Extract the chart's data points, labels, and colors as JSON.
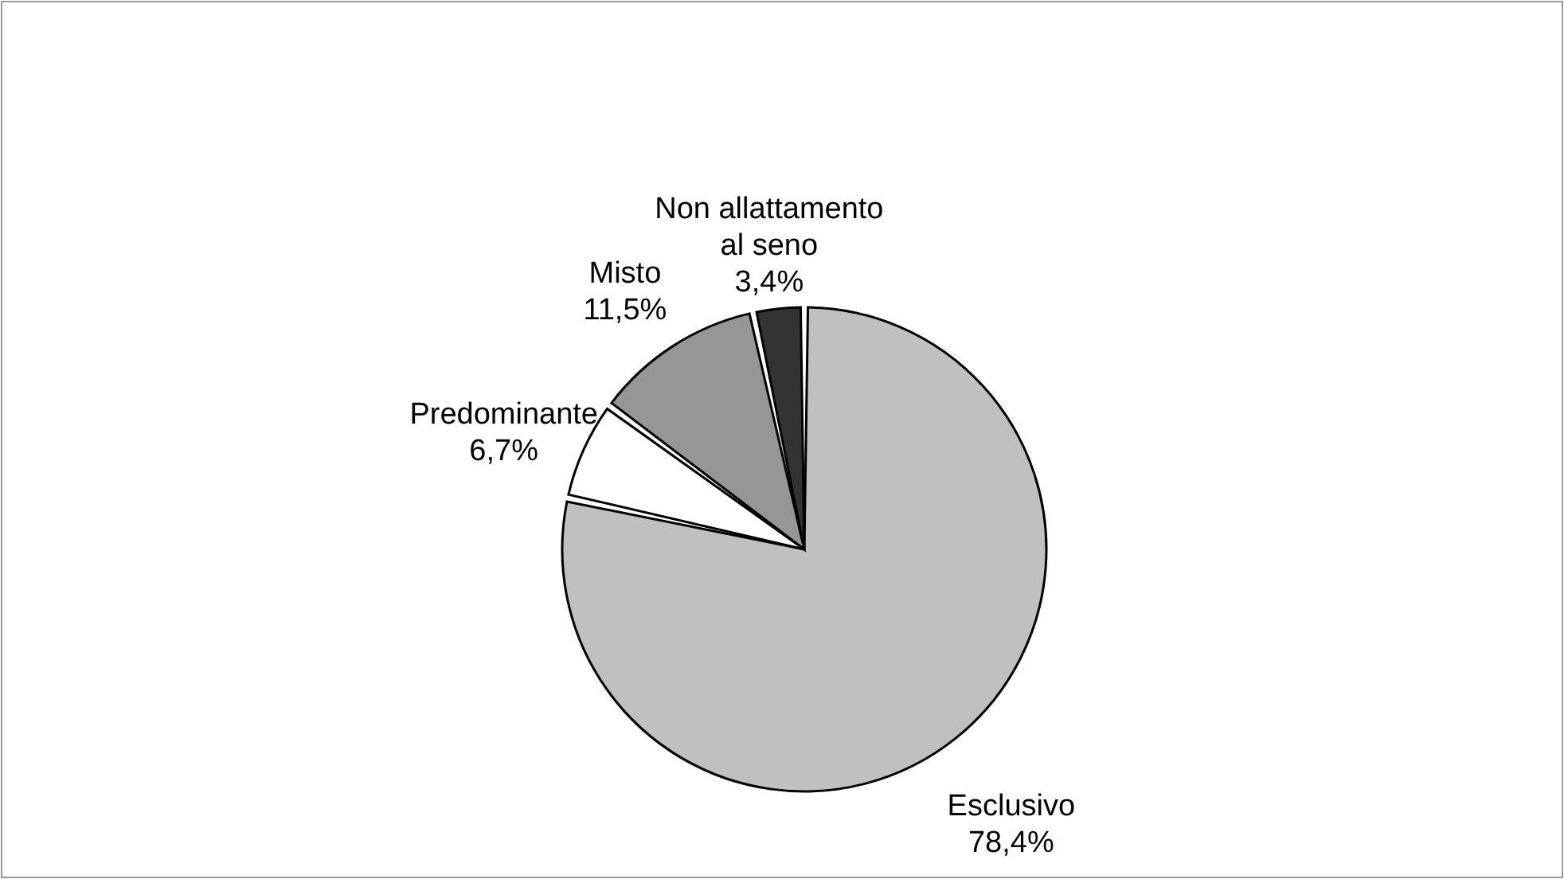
{
  "chart_data": {
    "type": "pie",
    "categories": [
      "Esclusivo",
      "Predominante",
      "Misto",
      "Non allattamento\nal seno"
    ],
    "values": [
      78.4,
      6.7,
      11.5,
      3.4
    ],
    "colors": [
      "#c0c0c0",
      "#ffffff",
      "#969696",
      "#333333"
    ],
    "value_labels": [
      "78,4%",
      "6,7%",
      "11,5%",
      "3,4%"
    ]
  }
}
